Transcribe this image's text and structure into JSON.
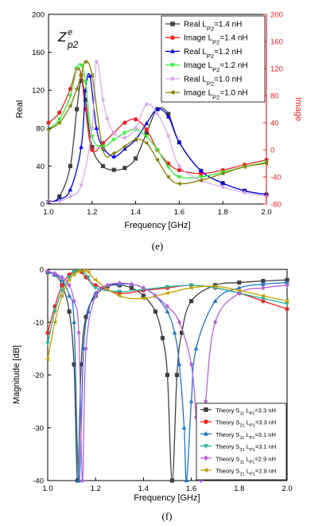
{
  "chart_data": [
    {
      "id": "e",
      "type": "line",
      "caption": "(e)",
      "annotation": "Z^e_p2",
      "xlabel": "Frequency [GHz]",
      "ylabel": "Real",
      "y2label": "Image",
      "xlim": [
        1.0,
        2.0
      ],
      "ylim": [
        0,
        200
      ],
      "y2lim": [
        -80,
        200
      ],
      "xticks": [
        "1.0",
        "1.2",
        "1.4",
        "1.6",
        "1.8",
        "2.0"
      ],
      "yticks": [
        "0",
        "40",
        "80",
        "120",
        "160",
        "200"
      ],
      "y2ticks": [
        "-80",
        "-40",
        "0",
        "40",
        "80",
        "120",
        "160",
        "200"
      ],
      "colors": {
        "s14": "#404040",
        "s12": "#0000ee",
        "s10": "#d9aaee",
        "i14": "#ee2222",
        "i12": "#33ee33",
        "i10": "#808000",
        "axis2": "#ee2222"
      },
      "legend_position": "top-right",
      "legend": [
        {
          "base": "Real L",
          "sub": "P2",
          "tail": "=1.4 nH",
          "color": "#404040",
          "marker": "square"
        },
        {
          "base": "Image L",
          "sub": "P2",
          "tail": "=1.4 nH",
          "color": "#ee2222",
          "marker": "circle"
        },
        {
          "base": "Real L",
          "sub": "P2",
          "tail": "=1.2 nH",
          "color": "#0000ee",
          "marker": "triangle-up"
        },
        {
          "base": "Image L",
          "sub": "P2",
          "tail": "=1.2 nH",
          "color": "#33ee33",
          "marker": "triangle-down"
        },
        {
          "base": "Real L",
          "sub": "P2",
          "tail": "=1.0 nH",
          "color": "#d9aaee",
          "marker": "diamond"
        },
        {
          "base": "Image L",
          "sub": "P2",
          "tail": "=1.0 nH",
          "color": "#808000",
          "marker": "triangle-left"
        }
      ],
      "series": [
        {
          "color": "#404040",
          "marker": "square",
          "axis": "left",
          "x": [
            1.0,
            1.05,
            1.1,
            1.13,
            1.15,
            1.17,
            1.2,
            1.25,
            1.3,
            1.35,
            1.4,
            1.45,
            1.5,
            1.55,
            1.6,
            1.7,
            1.8,
            1.9,
            2.0
          ],
          "y": [
            2,
            8,
            40,
            100,
            130,
            110,
            60,
            40,
            36,
            38,
            48,
            75,
            100,
            95,
            65,
            35,
            22,
            14,
            10
          ]
        },
        {
          "color": "#ee2222",
          "marker": "circle",
          "axis": "right",
          "x": [
            1.0,
            1.05,
            1.1,
            1.13,
            1.15,
            1.17,
            1.2,
            1.25,
            1.3,
            1.35,
            1.4,
            1.45,
            1.5,
            1.55,
            1.6,
            1.7,
            1.8,
            1.9,
            2.0
          ],
          "y": [
            40,
            55,
            90,
            120,
            110,
            60,
            0,
            10,
            25,
            40,
            45,
            30,
            0,
            -20,
            -30,
            -35,
            -30,
            -22,
            -15
          ]
        },
        {
          "color": "#0000ee",
          "marker": "triangle-up",
          "axis": "left",
          "x": [
            1.0,
            1.05,
            1.1,
            1.15,
            1.17,
            1.19,
            1.22,
            1.25,
            1.3,
            1.35,
            1.4,
            1.45,
            1.5,
            1.55,
            1.6,
            1.7,
            1.8,
            1.9,
            2.0
          ],
          "y": [
            2,
            5,
            15,
            60,
            120,
            135,
            80,
            60,
            50,
            58,
            68,
            85,
            100,
            92,
            65,
            35,
            22,
            14,
            10
          ]
        },
        {
          "color": "#33ee33",
          "marker": "triangle-down",
          "axis": "right",
          "x": [
            1.0,
            1.05,
            1.1,
            1.13,
            1.15,
            1.17,
            1.2,
            1.25,
            1.3,
            1.35,
            1.4,
            1.45,
            1.5,
            1.55,
            1.6,
            1.7,
            1.8,
            1.9,
            2.0
          ],
          "y": [
            30,
            45,
            80,
            120,
            125,
            100,
            20,
            5,
            15,
            25,
            30,
            20,
            0,
            -25,
            -40,
            -40,
            -33,
            -25,
            -18
          ]
        },
        {
          "color": "#d9aaee",
          "marker": "diamond",
          "axis": "left",
          "x": [
            1.0,
            1.05,
            1.1,
            1.15,
            1.2,
            1.22,
            1.25,
            1.27,
            1.3,
            1.35,
            1.4,
            1.45,
            1.5,
            1.55,
            1.6,
            1.7,
            1.8,
            1.9,
            2.0
          ],
          "y": [
            2,
            3,
            8,
            20,
            80,
            150,
            110,
            90,
            75,
            70,
            80,
            105,
            95,
            72,
            40,
            25,
            18,
            12,
            8
          ]
        },
        {
          "color": "#808000",
          "marker": "triangle-left",
          "axis": "right",
          "x": [
            1.0,
            1.05,
            1.1,
            1.13,
            1.15,
            1.17,
            1.2,
            1.25,
            1.3,
            1.35,
            1.4,
            1.45,
            1.5,
            1.55,
            1.6,
            1.7,
            1.8,
            1.9,
            2.0
          ],
          "y": [
            30,
            40,
            65,
            90,
            110,
            130,
            110,
            0,
            -5,
            5,
            15,
            10,
            -15,
            -40,
            -50,
            -45,
            -35,
            -25,
            -20
          ]
        }
      ]
    },
    {
      "id": "f",
      "type": "line",
      "caption": "(f)",
      "xlabel": "Frequency [GHz]",
      "ylabel": "Magnitude [dB]",
      "xlim": [
        1.0,
        2.0
      ],
      "ylim": [
        -40,
        0
      ],
      "xticks": [
        "1.0",
        "1.2",
        "1.4",
        "1.6",
        "1.8",
        "2.0"
      ],
      "yticks": [
        "0",
        "-10",
        "-20",
        "-30",
        "-40"
      ],
      "colors": {
        "s33": "#404040",
        "t33": "#ee2222",
        "s31": "#1c74d0",
        "t31": "#22b59a",
        "s29": "#b860e0",
        "t29": "#c8a000"
      },
      "legend_position": "bottom-right",
      "legend": [
        {
          "base": "Theory S",
          "sub": "11",
          "mid": " L",
          "sub2": "P1",
          "tail": "=3.3 nH",
          "color": "#404040",
          "marker": "square"
        },
        {
          "base": "Theory S",
          "sub": "21",
          "mid": " L",
          "sub2": "P1",
          "tail": "=3.3 nH",
          "color": "#ee2222",
          "marker": "circle"
        },
        {
          "base": "Theory S",
          "sub": "11",
          "mid": " L",
          "sub2": "P1",
          "tail": "=3.1 nH",
          "color": "#1c74d0",
          "marker": "triangle-up"
        },
        {
          "base": "Theory S",
          "sub": "21",
          "mid": " L",
          "sub2": "P1",
          "tail": "=3.1 nH",
          "color": "#22b59a",
          "marker": "triangle-down"
        },
        {
          "base": "Theory S",
          "sub": "11",
          "mid": " L",
          "sub2": "P1",
          "tail": "=2.9 nH",
          "color": "#b860e0",
          "marker": "diamond"
        },
        {
          "base": "Theory S",
          "sub": "21",
          "mid": " L",
          "sub2": "P1",
          "tail": "=2.9 nH",
          "color": "#c8a000",
          "marker": "triangle-left"
        }
      ],
      "series": [
        {
          "color": "#404040",
          "marker": "square",
          "x": [
            1.0,
            1.03,
            1.06,
            1.09,
            1.11,
            1.125,
            1.14,
            1.16,
            1.2,
            1.25,
            1.3,
            1.35,
            1.4,
            1.45,
            1.48,
            1.5,
            1.52,
            1.54,
            1.56,
            1.6,
            1.7,
            1.8,
            1.9,
            2.0
          ],
          "y": [
            -0.5,
            -1,
            -3,
            -8,
            -18,
            -40,
            -18,
            -9,
            -5,
            -3.2,
            -3,
            -3.5,
            -5,
            -8,
            -13,
            -20,
            -40,
            -20,
            -12,
            -6,
            -3,
            -2.5,
            -2.2,
            -2
          ]
        },
        {
          "color": "#ee2222",
          "marker": "circle",
          "x": [
            1.0,
            1.03,
            1.06,
            1.09,
            1.11,
            1.125,
            1.14,
            1.16,
            1.2,
            1.3,
            1.4,
            1.5,
            1.6,
            1.7,
            1.8,
            1.9,
            2.0
          ],
          "y": [
            -12,
            -7,
            -3,
            -1,
            -0.5,
            -0.2,
            -0.5,
            -1.5,
            -3,
            -4.5,
            -4,
            -3.5,
            -3,
            -3.5,
            -4.5,
            -6,
            -7.5
          ]
        },
        {
          "color": "#1c74d0",
          "marker": "triangle-up",
          "x": [
            1.0,
            1.03,
            1.06,
            1.09,
            1.11,
            1.13,
            1.15,
            1.17,
            1.2,
            1.25,
            1.3,
            1.35,
            1.4,
            1.45,
            1.5,
            1.53,
            1.55,
            1.57,
            1.58,
            1.6,
            1.62,
            1.7,
            1.8,
            1.9,
            2.0
          ],
          "y": [
            -0.5,
            -1,
            -2,
            -5,
            -10,
            -40,
            -15,
            -8,
            -4.5,
            -3,
            -2.8,
            -2.8,
            -3.5,
            -5,
            -8,
            -12,
            -18,
            -30,
            -40,
            -25,
            -15,
            -6,
            -3.5,
            -2.8,
            -2.5
          ]
        },
        {
          "color": "#22b59a",
          "marker": "triangle-down",
          "x": [
            1.0,
            1.03,
            1.06,
            1.09,
            1.11,
            1.13,
            1.15,
            1.17,
            1.2,
            1.3,
            1.4,
            1.5,
            1.6,
            1.7,
            1.8,
            1.9,
            2.0
          ],
          "y": [
            -14,
            -8,
            -4,
            -1.5,
            -0.5,
            -0.2,
            -0.5,
            -1.5,
            -3.5,
            -4.2,
            -3.8,
            -3.3,
            -3,
            -3.5,
            -4.5,
            -5.5,
            -6.5
          ]
        },
        {
          "color": "#b860e0",
          "marker": "diamond",
          "x": [
            1.0,
            1.03,
            1.06,
            1.09,
            1.11,
            1.13,
            1.145,
            1.16,
            1.2,
            1.25,
            1.3,
            1.35,
            1.4,
            1.45,
            1.5,
            1.55,
            1.6,
            1.62,
            1.64,
            1.66,
            1.7,
            1.8,
            1.9,
            2.0
          ],
          "y": [
            -0.3,
            -0.8,
            -1.5,
            -3,
            -6,
            -12,
            -40,
            -15,
            -5,
            -3,
            -2.6,
            -2.8,
            -3.5,
            -5,
            -7,
            -10,
            -18,
            -28,
            -40,
            -25,
            -10,
            -4.5,
            -3.5,
            -3
          ]
        },
        {
          "color": "#c8a000",
          "marker": "triangle-left",
          "x": [
            1.0,
            1.03,
            1.06,
            1.09,
            1.11,
            1.13,
            1.15,
            1.17,
            1.2,
            1.3,
            1.4,
            1.5,
            1.6,
            1.7,
            1.8,
            1.9,
            2.0
          ],
          "y": [
            -17,
            -10,
            -5,
            -2,
            -1,
            -0.4,
            -0.2,
            -0.5,
            -2,
            -5,
            -5.5,
            -4.5,
            -3.5,
            -3.2,
            -4,
            -5,
            -6
          ]
        }
      ]
    }
  ]
}
